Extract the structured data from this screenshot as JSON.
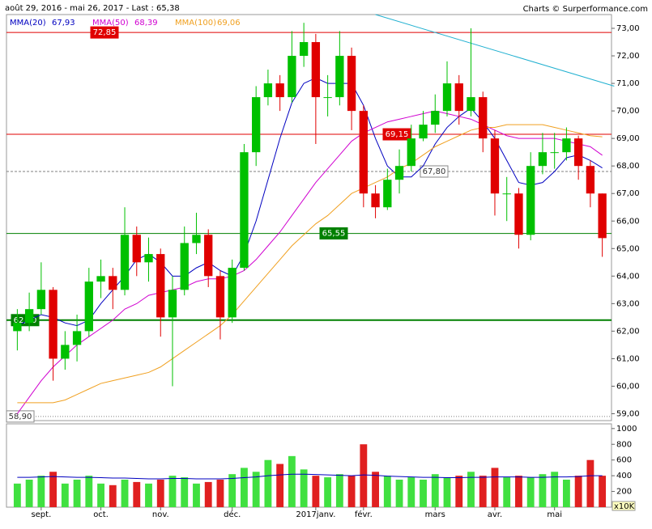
{
  "chart_data": {
    "type": "candlestick",
    "header": "août 29, 2016 - mai 26, 2017 - Last : 65,38",
    "credit": "Charts © Surperformance.com",
    "categories": [
      null,
      null,
      "sept.",
      null,
      null,
      null,
      null,
      "oct.",
      null,
      null,
      null,
      null,
      "nov.",
      null,
      null,
      null,
      null,
      null,
      "déc.",
      null,
      null,
      null,
      null,
      null,
      null,
      "2017janv.",
      null,
      null,
      null,
      "févr.",
      null,
      null,
      null,
      null,
      null,
      "mars",
      null,
      null,
      null,
      null,
      "avr.",
      null,
      null,
      null,
      null,
      "mai",
      null,
      null,
      null,
      null
    ],
    "open": [
      62.0,
      62.3,
      62.8,
      63.5,
      61.0,
      61.5,
      62.0,
      63.8,
      64.0,
      63.5,
      65.5,
      64.5,
      64.8,
      62.5,
      63.5,
      65.2,
      65.5,
      64.0,
      62.5,
      64.3,
      68.5,
      70.5,
      71.0,
      70.5,
      72.0,
      72.5,
      70.5,
      70.5,
      72.0,
      70.0,
      67.0,
      66.5,
      67.5,
      68.0,
      69.0,
      69.5,
      70.0,
      71.0,
      70.0,
      70.5,
      69.0,
      67.0,
      67.0,
      65.5,
      68.0,
      68.5,
      68.5,
      69.0,
      68.0,
      67.0
    ],
    "high": [
      62.8,
      63.4,
      64.5,
      63.6,
      62.0,
      62.6,
      64.3,
      64.6,
      64.3,
      66.5,
      65.8,
      65.4,
      65.0,
      64.0,
      65.8,
      66.3,
      65.7,
      64.2,
      64.6,
      68.8,
      70.9,
      71.5,
      71.3,
      72.9,
      73.2,
      72.8,
      71.3,
      72.9,
      72.3,
      70.2,
      67.3,
      67.9,
      68.6,
      69.5,
      70.0,
      70.6,
      71.8,
      71.3,
      73.0,
      70.7,
      69.3,
      67.6,
      67.2,
      68.5,
      69.2,
      69.2,
      69.4,
      69.1,
      68.2,
      67.0
    ],
    "low": [
      61.3,
      62.0,
      62.6,
      60.2,
      60.6,
      60.9,
      61.8,
      63.2,
      62.8,
      63.3,
      64.0,
      63.8,
      61.8,
      60.0,
      63.3,
      64.8,
      63.6,
      61.7,
      62.3,
      64.2,
      68.0,
      70.2,
      70.0,
      70.3,
      71.6,
      68.8,
      69.8,
      70.2,
      69.3,
      66.5,
      66.1,
      66.4,
      67.0,
      67.8,
      68.9,
      69.2,
      69.8,
      69.5,
      69.8,
      68.5,
      66.2,
      66.0,
      65.0,
      65.3,
      67.7,
      67.9,
      68.2,
      67.5,
      66.5,
      64.7
    ],
    "close": [
      62.3,
      62.8,
      63.5,
      61.0,
      61.5,
      62.0,
      63.8,
      64.0,
      63.5,
      65.5,
      64.5,
      64.8,
      62.5,
      63.5,
      65.2,
      65.5,
      64.0,
      62.5,
      64.3,
      68.5,
      70.5,
      71.0,
      70.5,
      72.0,
      72.5,
      70.5,
      70.5,
      72.0,
      70.0,
      67.0,
      66.5,
      67.5,
      68.0,
      69.0,
      69.5,
      70.0,
      71.0,
      70.0,
      70.5,
      69.0,
      67.0,
      67.0,
      65.5,
      68.0,
      68.5,
      68.5,
      69.0,
      68.0,
      67.0,
      65.38
    ],
    "up_color": "#00c000",
    "down_color": "#e00000",
    "series": [
      {
        "name": "MMA(20)",
        "last_label": "67,93",
        "color": "#0000c0",
        "values": [
          62.2,
          62.4,
          62.6,
          62.5,
          62.3,
          62.2,
          62.4,
          63.0,
          63.5,
          64.0,
          64.6,
          64.8,
          64.5,
          64.0,
          64.0,
          64.3,
          64.5,
          64.2,
          64.0,
          64.8,
          66.0,
          67.5,
          69.0,
          70.3,
          71.0,
          71.2,
          71.0,
          71.0,
          71.0,
          70.2,
          69.0,
          68.0,
          67.6,
          67.6,
          68.0,
          68.8,
          69.4,
          69.8,
          70.1,
          69.6,
          69.0,
          68.2,
          67.4,
          67.3,
          67.4,
          67.8,
          68.3,
          68.4,
          68.2,
          67.93
        ]
      },
      {
        "name": "MMA(50)",
        "last_label": "68,39",
        "color": "#d000d0",
        "values": [
          59.0,
          59.6,
          60.2,
          60.7,
          61.1,
          61.5,
          61.8,
          62.1,
          62.4,
          62.8,
          63.0,
          63.3,
          63.4,
          63.5,
          63.6,
          63.8,
          63.9,
          63.9,
          64.0,
          64.2,
          64.6,
          65.1,
          65.6,
          66.2,
          66.8,
          67.4,
          67.9,
          68.4,
          68.9,
          69.2,
          69.4,
          69.6,
          69.7,
          69.8,
          69.9,
          70.0,
          69.9,
          69.8,
          69.7,
          69.5,
          69.3,
          69.1,
          69.0,
          69.0,
          69.0,
          69.0,
          68.9,
          68.8,
          68.7,
          68.39
        ]
      },
      {
        "name": "MMA(100)",
        "last_label": "69,06",
        "color": "#f0a020",
        "values": [
          59.4,
          59.4,
          59.4,
          59.4,
          59.5,
          59.7,
          59.9,
          60.1,
          60.2,
          60.3,
          60.4,
          60.5,
          60.7,
          61.0,
          61.3,
          61.6,
          61.9,
          62.2,
          62.6,
          63.1,
          63.6,
          64.1,
          64.6,
          65.1,
          65.5,
          65.9,
          66.2,
          66.6,
          67.0,
          67.2,
          67.4,
          67.6,
          67.9,
          68.1,
          68.4,
          68.7,
          68.9,
          69.1,
          69.3,
          69.4,
          69.4,
          69.5,
          69.5,
          69.5,
          69.5,
          69.4,
          69.3,
          69.2,
          69.1,
          69.06
        ]
      }
    ],
    "levels": [
      {
        "value": 72.85,
        "label": "72,85",
        "color": "#e00000",
        "style": "solid"
      },
      {
        "value": 69.15,
        "label": "69,15",
        "color": "#e00000",
        "style": "solid"
      },
      {
        "value": 67.8,
        "label": "67,80",
        "color": "#808080",
        "style": "dashed"
      },
      {
        "value": 65.55,
        "label": "65,55",
        "color": "#008000",
        "style": "solid"
      },
      {
        "value": 62.4,
        "label": "62,40",
        "color": "#008000",
        "style": "thick"
      },
      {
        "value": 58.9,
        "label": "58,90",
        "color": "#808080",
        "style": "dotted"
      }
    ],
    "trendline": {
      "x": [
        30,
        50
      ],
      "y": [
        73.5,
        70.9
      ],
      "color": "#20b0d0"
    },
    "ylim": [
      58.75,
      73.5
    ],
    "yticks": [
      {
        "value": 59,
        "label": "59,00"
      },
      {
        "value": 60,
        "label": "60,00"
      },
      {
        "value": 61,
        "label": "61,00"
      },
      {
        "value": 62,
        "label": "62,00"
      },
      {
        "value": 63,
        "label": "63,00"
      },
      {
        "value": 64,
        "label": "64,00"
      },
      {
        "value": 65,
        "label": "65,00"
      },
      {
        "value": 66,
        "label": "66,00"
      },
      {
        "value": 67,
        "label": "67,00"
      },
      {
        "value": 68,
        "label": "68,00"
      },
      {
        "value": 69,
        "label": "69,00"
      },
      {
        "value": 70,
        "label": "70,00"
      },
      {
        "value": 71,
        "label": "71,00"
      },
      {
        "value": 72,
        "label": "72,00"
      },
      {
        "value": 73,
        "label": "73,00"
      }
    ],
    "volume": {
      "unit": "x10K",
      "values": [
        300,
        350,
        400,
        450,
        300,
        350,
        400,
        300,
        280,
        350,
        320,
        300,
        350,
        400,
        380,
        300,
        320,
        350,
        420,
        500,
        450,
        600,
        550,
        650,
        480,
        400,
        380,
        420,
        400,
        800,
        450,
        400,
        350,
        380,
        350,
        420,
        380,
        400,
        450,
        400,
        500,
        380,
        400,
        380,
        420,
        450,
        350,
        400,
        600,
        400
      ],
      "average": [
        380,
        380,
        385,
        390,
        385,
        380,
        380,
        375,
        370,
        370,
        365,
        360,
        360,
        365,
        365,
        360,
        360,
        360,
        365,
        375,
        385,
        400,
        410,
        420,
        420,
        415,
        410,
        405,
        400,
        410,
        405,
        395,
        390,
        385,
        380,
        380,
        375,
        375,
        380,
        380,
        385,
        385,
        385,
        380,
        380,
        385,
        385,
        390,
        400,
        400
      ],
      "average_color": "#0000c0",
      "ylim": [
        0,
        1060
      ],
      "yticks": [
        200,
        400,
        600,
        800,
        1000
      ]
    }
  }
}
